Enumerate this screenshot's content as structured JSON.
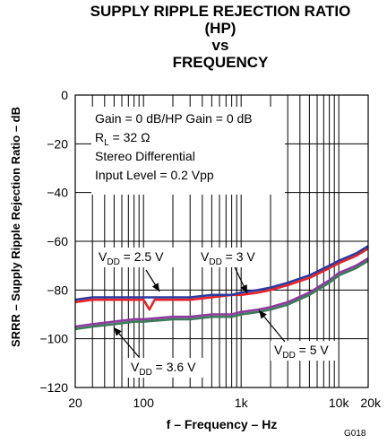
{
  "title_lines": [
    "SUPPLY RIPPLE REJECTION RATIO",
    "(HP)",
    "vs",
    "FREQUENCY"
  ],
  "figure_code": "G018",
  "chart_data": {
    "type": "line",
    "xlabel": "f – Frequency – Hz",
    "ylabel": "SRRR – Supply Ripple Rejection Ratio – dB",
    "xscale": "log",
    "xlim": [
      20,
      20000
    ],
    "ylim": [
      -120,
      0
    ],
    "grid": true,
    "x_ticks": [
      {
        "value": 20,
        "label": "20"
      },
      {
        "value": 100,
        "label": "100"
      },
      {
        "value": 1000,
        "label": "1k"
      },
      {
        "value": 10000,
        "label": "10k"
      },
      {
        "value": 20000,
        "label": "20k"
      }
    ],
    "y_ticks": [
      0,
      -20,
      -40,
      -60,
      -80,
      -100,
      -120
    ],
    "conditions": [
      "Gain = 0 dB/HP Gain = 0 dB",
      "R_L = 32 Ω",
      "Stereo Differential",
      "Input Level = 0.2 Vpp"
    ],
    "series": [
      {
        "label": "V_DD = 2.5 V",
        "color": "#e8232a",
        "x": [
          20,
          30,
          50,
          80,
          100,
          115,
          130,
          200,
          300,
          500,
          800,
          1000,
          1500,
          2000,
          3000,
          5000,
          8000,
          10000,
          15000,
          20000
        ],
        "y": [
          -85,
          -84,
          -84,
          -84,
          -84,
          -88,
          -84,
          -84,
          -84,
          -83,
          -82,
          -82,
          -81,
          -80,
          -78,
          -75,
          -71,
          -69,
          -66,
          -63
        ]
      },
      {
        "label": "V_DD = 3 V",
        "color": "#2b3a9e",
        "x": [
          20,
          30,
          50,
          80,
          100,
          200,
          300,
          500,
          800,
          1000,
          1500,
          2000,
          3000,
          5000,
          8000,
          10000,
          15000,
          20000
        ],
        "y": [
          -84,
          -83,
          -83,
          -83,
          -83,
          -83,
          -83,
          -82,
          -82,
          -81,
          -80,
          -79,
          -77,
          -74,
          -70,
          -68,
          -65,
          -62
        ]
      },
      {
        "label": "V_DD = 3.6 V",
        "color": "#8e3a9e",
        "x": [
          20,
          30,
          50,
          80,
          100,
          200,
          300,
          500,
          800,
          1000,
          1500,
          2000,
          3000,
          5000,
          8000,
          10000,
          15000,
          20000
        ],
        "y": [
          -95,
          -94,
          -93,
          -92,
          -92,
          -91,
          -91,
          -90,
          -90,
          -89,
          -88,
          -87,
          -85,
          -81,
          -76,
          -73,
          -70,
          -67
        ]
      },
      {
        "label": "V_DD = 5 V",
        "color": "#3d7a5a",
        "x": [
          20,
          30,
          50,
          80,
          100,
          200,
          300,
          500,
          800,
          1000,
          1500,
          2000,
          3000,
          5000,
          8000,
          10000,
          15000,
          20000
        ],
        "y": [
          -96,
          -95,
          -94,
          -93,
          -93,
          -92,
          -92,
          -91,
          -91,
          -90,
          -89,
          -88,
          -86,
          -82,
          -77,
          -74,
          -71,
          -68
        ]
      }
    ]
  }
}
